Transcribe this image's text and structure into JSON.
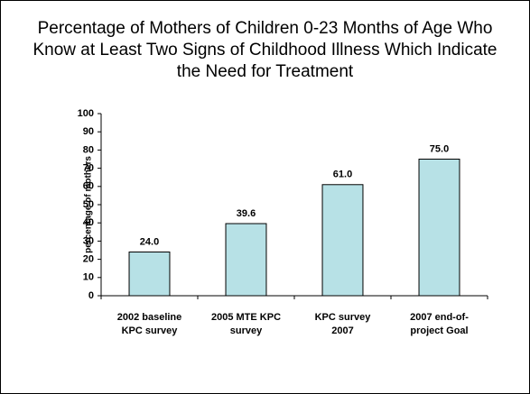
{
  "chart_data": {
    "type": "bar",
    "title": "Percentage of Mothers of Children 0-23 Months of Age Who Know at Least Two Signs of Childhood Illness Which Indicate the Need for Treatment",
    "y_label": "percentage of mothers",
    "categories": [
      "2002 baseline\nKPC survey",
      "2005 MTE KPC\nsurvey",
      "KPC survey\n2007",
      "2007 end-of-\nproject Goal"
    ],
    "values": [
      24,
      39.6,
      61,
      75
    ],
    "value_labels": [
      "24.0",
      "39.6",
      "61.0",
      "75.0"
    ],
    "color": "#b7e1e6",
    "ylim": [
      0,
      100
    ],
    "yticks": [
      0,
      10,
      20,
      30,
      40,
      50,
      60,
      70,
      80,
      90,
      100
    ],
    "grid": false
  }
}
